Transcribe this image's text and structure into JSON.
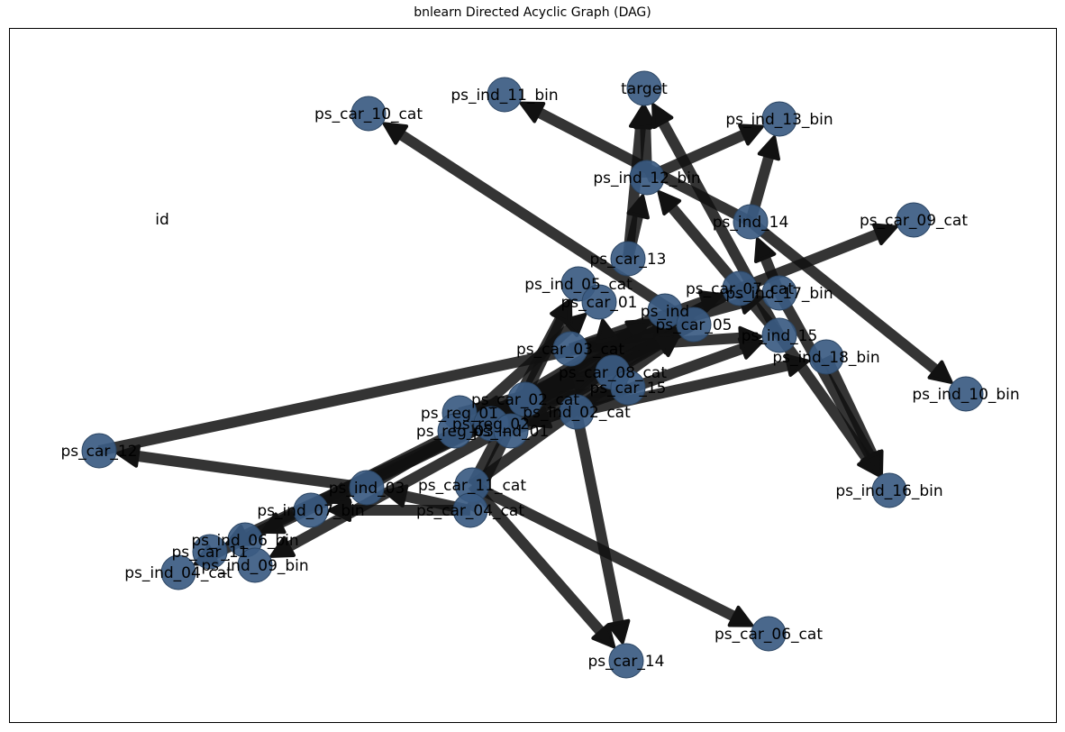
{
  "title": "bnlearn Directed Acyclic Graph (DAG)",
  "colors": {
    "node": "#3b5b82",
    "edge": "#111111",
    "frame": "#000000"
  },
  "nodes": [
    "target",
    "ps_ind_11_bin",
    "ps_car_10_cat",
    "ps_ind_13_bin",
    "ps_ind_12_bin",
    "id",
    "ps_ind_14",
    "ps_car_09_cat",
    "ps_car_13",
    "ps_ind_05_cat",
    "ps_car_01",
    "ps_car_07_cat",
    "ps_ind_17_bin",
    "ps_ind",
    "ps_car_05",
    "ps_ind_15",
    "ps_ind_18_bin",
    "ps_car_08_cat",
    "ps_car_03_cat",
    "ps_car_15",
    "ps_ind_10_bin",
    "ps_car_02_cat",
    "ps_ind_02_cat",
    "ps_reg_01",
    "ps_reg_02",
    "ps_reg_03",
    "ps_ind_01",
    "ps_car_12",
    "ps_ind_03",
    "ps_car_11_cat",
    "ps_ind_16_bin",
    "ps_ind_07_bin",
    "ps_car_04_cat",
    "ps_ind_06_bin",
    "ps_car_11",
    "ps_ind_09_bin",
    "ps_ind_04_cat",
    "ps_car_06_cat",
    "ps_car_14"
  ],
  "edges": [
    {
      "from": "ps_car_05",
      "to": "ps_car_10_cat"
    },
    {
      "from": "ps_ind_14",
      "to": "ps_ind_11_bin"
    },
    {
      "from": "ps_ind_14",
      "to": "ps_ind_13_bin"
    },
    {
      "from": "ps_car_13",
      "to": "target"
    },
    {
      "from": "ps_ind_12_bin",
      "to": "target"
    },
    {
      "from": "ps_ind_15",
      "to": "target"
    },
    {
      "from": "ps_car_13",
      "to": "ps_ind_12_bin"
    },
    {
      "from": "ps_ind_12_bin",
      "to": "ps_ind_13_bin"
    },
    {
      "from": "ps_ind_15",
      "to": "ps_ind_12_bin"
    },
    {
      "from": "ps_ind_14",
      "to": "ps_ind_10_bin"
    },
    {
      "from": "ps_car_07_cat",
      "to": "ps_car_09_cat"
    },
    {
      "from": "ps_ind_15",
      "to": "ps_ind_16_bin"
    },
    {
      "from": "ps_ind_17_bin",
      "to": "ps_ind_16_bin"
    },
    {
      "from": "ps_ind_18_bin",
      "to": "ps_ind_16_bin"
    },
    {
      "from": "ps_ind_17_bin",
      "to": "ps_ind_14"
    },
    {
      "from": "ps_car_12",
      "to": "ps_car_05"
    },
    {
      "from": "ps_ind_03",
      "to": "ps_car_12"
    },
    {
      "from": "ps_car_11_cat",
      "to": "ps_car_14"
    },
    {
      "from": "ps_ind_02_cat",
      "to": "ps_car_14"
    },
    {
      "from": "ps_car_11_cat",
      "to": "ps_car_06_cat"
    },
    {
      "from": "ps_car_05",
      "to": "ps_car_11"
    },
    {
      "from": "ps_car_05",
      "to": "ps_ind_09_bin"
    },
    {
      "from": "ps_car_05",
      "to": "ps_ind_06_bin"
    },
    {
      "from": "ps_car_05",
      "to": "ps_ind_07_bin"
    },
    {
      "from": "ps_car_07_cat",
      "to": "ps_ind_04_cat"
    },
    {
      "from": "ps_car_03_cat",
      "to": "ps_car_07_cat"
    },
    {
      "from": "ps_car_03_cat",
      "to": "ps_ind_17_bin"
    },
    {
      "from": "ps_car_03_cat",
      "to": "ps_ind_15"
    },
    {
      "from": "ps_ind_02_cat",
      "to": "ps_ind_18_bin"
    },
    {
      "from": "ps_car_02_cat",
      "to": "ps_ind"
    },
    {
      "from": "ps_car_11_cat",
      "to": "ps_car_05"
    },
    {
      "from": "ps_ind_03",
      "to": "ps_ind"
    },
    {
      "from": "ps_ind_01",
      "to": "ps_car_05"
    },
    {
      "from": "ps_reg_03",
      "to": "ps_car_01"
    },
    {
      "from": "ps_car_04_cat",
      "to": "ps_ind_05_cat"
    },
    {
      "from": "ps_car_11_cat",
      "to": "ps_ind_05_cat"
    },
    {
      "from": "ps_car_08_cat",
      "to": "ps_car_01"
    },
    {
      "from": "ps_car_08_cat",
      "to": "ps_car_15"
    },
    {
      "from": "ps_reg_02",
      "to": "ps_car_02_cat"
    },
    {
      "from": "ps_reg_01",
      "to": "ps_car_08_cat"
    },
    {
      "from": "ps_car_04_cat",
      "to": "ps_ind_07_bin"
    },
    {
      "from": "ps_car_04_cat",
      "to": "ps_ind_03"
    },
    {
      "from": "ps_car_15",
      "to": "ps_reg_01"
    },
    {
      "from": "ps_car_15",
      "to": "ps_ind_01"
    },
    {
      "from": "ps_car_07_cat",
      "to": "ps_reg_03"
    },
    {
      "from": "ps_ind_01",
      "to": "ps_ind_15"
    }
  ]
}
